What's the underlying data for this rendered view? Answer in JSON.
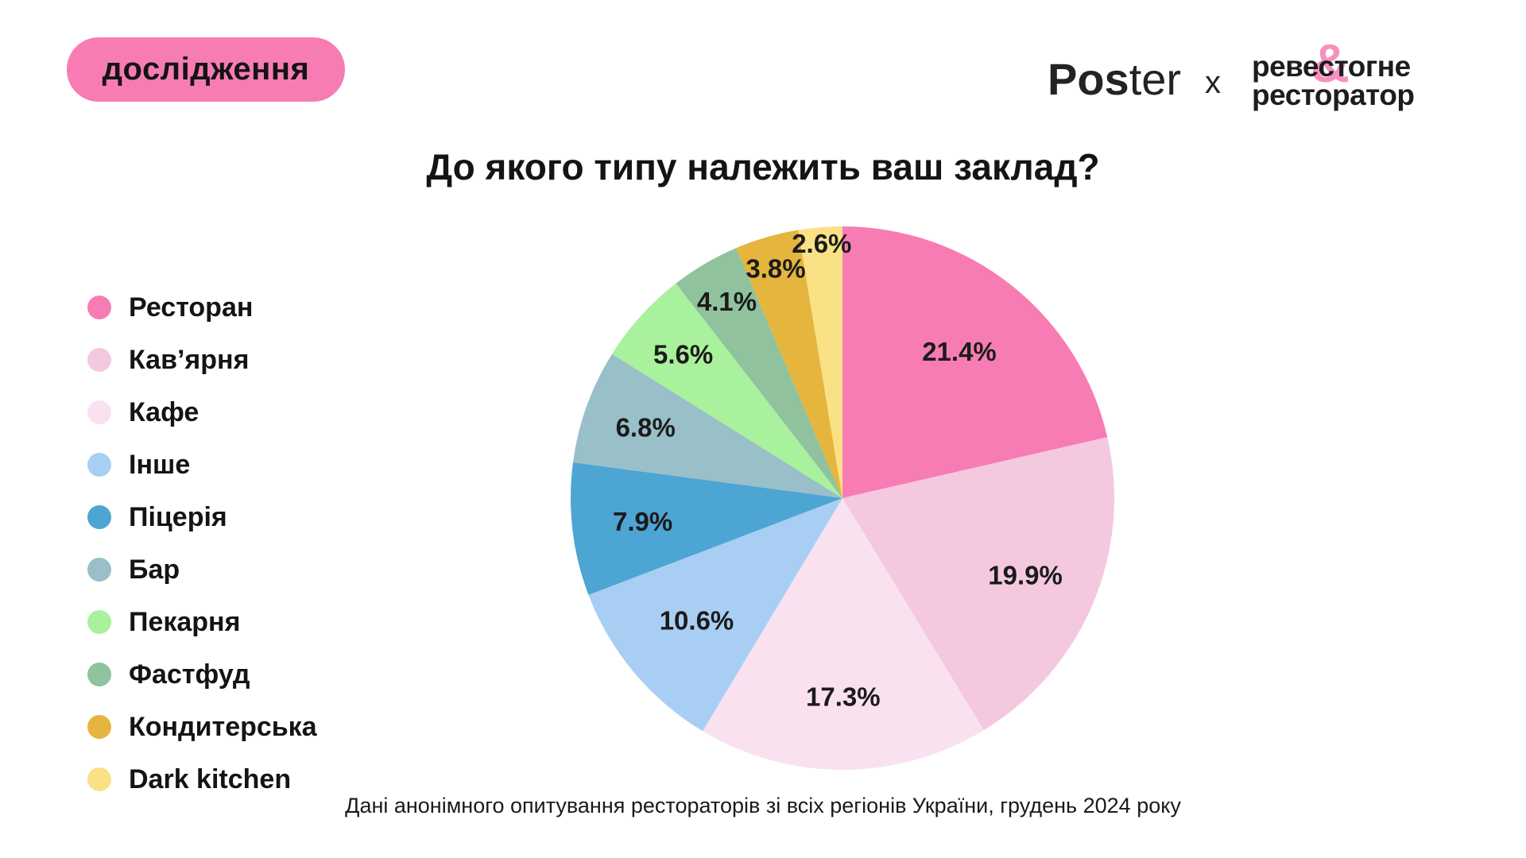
{
  "badge": {
    "label": "дослідження"
  },
  "logos": {
    "poster_bold": "Pos",
    "poster_light": "ter",
    "separator": "x",
    "partner_line1_left": "реве",
    "partner_amp": "&",
    "partner_line1_right": "стогне",
    "partner_line2": "ресторатор"
  },
  "title": "До якого типу належить ваш заклад?",
  "footer": "Дані анонімного опитування рестораторів зі всіх регіонів України, грудень 2024 року",
  "colors": {
    "accent_pink": "#F87CB4",
    "amp_pink": "#F88FC0"
  },
  "chart_data": {
    "type": "pie",
    "title": "До якого типу належить ваш заклад?",
    "categories": [
      "Ресторан",
      "Кав’ярня",
      "Кафе",
      "Інше",
      "Піцерія",
      "Бар",
      "Пекарня",
      "Фастфуд",
      "Кондитерська",
      "Dark kitchen"
    ],
    "values": [
      21.4,
      19.9,
      17.3,
      10.6,
      7.9,
      6.8,
      5.6,
      4.1,
      3.8,
      2.6
    ],
    "colors": [
      "#F87CB4",
      "#F4C9E0",
      "#F9E1EF",
      "#A9CEF3",
      "#4DA5D3",
      "#99BFC8",
      "#A9F19C",
      "#90C29D",
      "#E5B53D",
      "#FAE185"
    ],
    "label_format": "percent",
    "label_radius_factors": [
      0.69,
      0.73,
      0.73,
      0.7,
      0.74,
      0.77,
      0.79,
      0.84,
      0.88,
      0.94
    ],
    "start_angle": "top",
    "direction": "clockwise",
    "legend_position": "left",
    "source_note": "Дані анонімного опитування рестораторів зі всіх регіонів України, грудень 2024 року"
  }
}
